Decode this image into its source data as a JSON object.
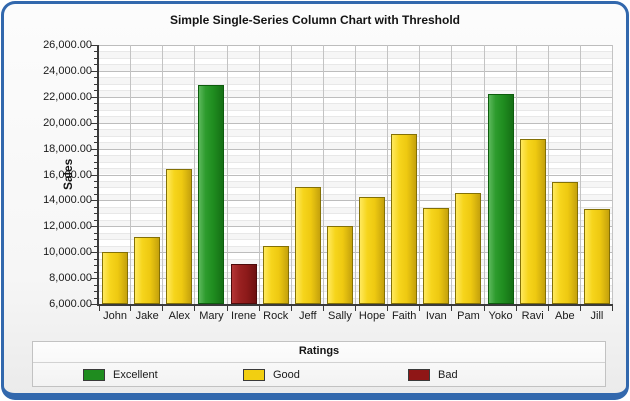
{
  "frame": {
    "border_color": "#3268ad",
    "background": "#f6f6f6"
  },
  "chart_data": {
    "type": "bar",
    "title": "Simple Single-Series Column Chart with Threshold",
    "xlabel": "",
    "ylabel": "Sales",
    "ylim": [
      6000,
      26000
    ],
    "ytick_step": 2000,
    "ytick_labels": [
      "26,000.00",
      "24,000.00",
      "22,000.00",
      "20,000.00",
      "18,000.00",
      "16,000.00",
      "14,000.00",
      "12,000.00",
      "10,000.00",
      "8,000.00",
      "6,000.00"
    ],
    "grid": "major-and-minor, minor every 500",
    "categories": [
      "John",
      "Jake",
      "Alex",
      "Mary",
      "Irene",
      "Rock",
      "Jeff",
      "Sally",
      "Hope",
      "Faith",
      "Ivan",
      "Pam",
      "Yoko",
      "Ravi",
      "Abe",
      "Jill"
    ],
    "series": [
      {
        "name": "Sales",
        "values": [
          10000,
          11200,
          16400,
          22950,
          9100,
          10450,
          15000,
          12000,
          14300,
          19150,
          13400,
          14550,
          22250,
          18750,
          15400,
          13300
        ]
      }
    ],
    "ratings": [
      "Good",
      "Good",
      "Good",
      "Excellent",
      "Bad",
      "Good",
      "Good",
      "Good",
      "Good",
      "Good",
      "Good",
      "Good",
      "Excellent",
      "Good",
      "Good",
      "Good"
    ],
    "rating_colors": {
      "Excellent": "#1f8c1f",
      "Good": "#f2cf11",
      "Bad": "#8f1616"
    },
    "legend": {
      "title": "Ratings",
      "position": "bottom",
      "entries": [
        {
          "label": "Excellent",
          "color": "#1f8c1f"
        },
        {
          "label": "Good",
          "color": "#f2cf11"
        },
        {
          "label": "Bad",
          "color": "#8f1616"
        }
      ]
    }
  }
}
